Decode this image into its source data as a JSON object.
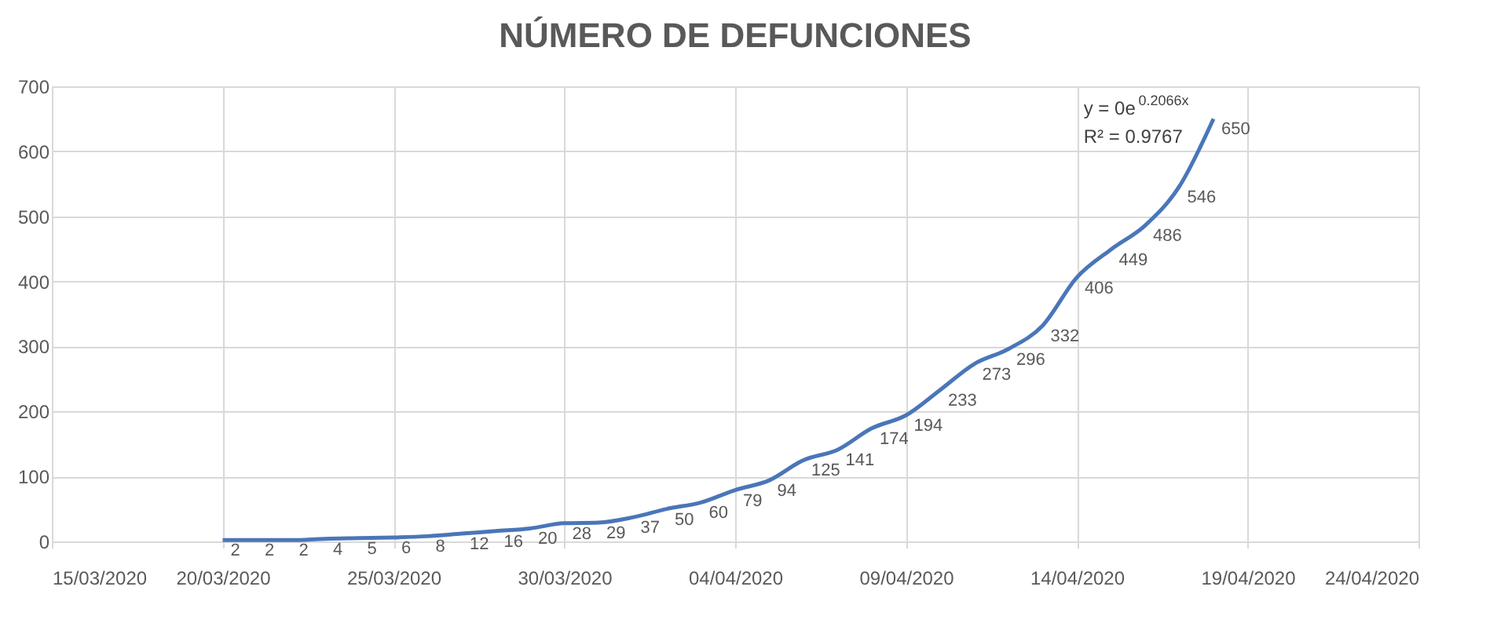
{
  "chart_data": {
    "type": "line",
    "title": "NÚMERO DE DEFUNCIONES",
    "x": [
      "2020-03-20",
      "2020-03-21",
      "2020-03-22",
      "2020-03-23",
      "2020-03-24",
      "2020-03-25",
      "2020-03-26",
      "2020-03-27",
      "2020-03-28",
      "2020-03-29",
      "2020-03-30",
      "2020-03-31",
      "2020-04-01",
      "2020-04-02",
      "2020-04-03",
      "2020-04-04",
      "2020-04-05",
      "2020-04-06",
      "2020-04-07",
      "2020-04-08",
      "2020-04-09",
      "2020-04-10",
      "2020-04-11",
      "2020-04-12",
      "2020-04-13",
      "2020-04-14",
      "2020-04-15",
      "2020-04-16",
      "2020-04-17",
      "2020-04-18"
    ],
    "series": [
      {
        "color": "#4a76b8",
        "values": [
          2,
          2,
          2,
          4,
          5,
          6,
          8,
          12,
          16,
          20,
          28,
          29,
          37,
          50,
          60,
          79,
          94,
          125,
          141,
          174,
          194,
          233,
          273,
          296,
          332,
          406,
          449,
          486,
          546,
          650
        ]
      }
    ],
    "xlim": [
      "2020-03-15",
      "2020-04-24"
    ],
    "xticks": [
      {
        "value": "2020-03-15",
        "label": "15/03/2020"
      },
      {
        "value": "2020-03-20",
        "label": "20/03/2020"
      },
      {
        "value": "2020-03-25",
        "label": "25/03/2020"
      },
      {
        "value": "2020-03-30",
        "label": "30/03/2020"
      },
      {
        "value": "2020-04-04",
        "label": "04/04/2020"
      },
      {
        "value": "2020-04-09",
        "label": "09/04/2020"
      },
      {
        "value": "2020-04-14",
        "label": "14/04/2020"
      },
      {
        "value": "2020-04-19",
        "label": "19/04/2020"
      },
      {
        "value": "2020-04-24",
        "label": "24/04/2020"
      }
    ],
    "ylim": [
      0,
      700
    ],
    "yticks": [
      0,
      100,
      200,
      300,
      400,
      500,
      600,
      700
    ],
    "grid": true,
    "marker": "none",
    "line_style": "solid",
    "data_labels": true,
    "annotations": [
      "y = 0e$^{0.2066x}$",
      "R² = 0.9767"
    ]
  }
}
